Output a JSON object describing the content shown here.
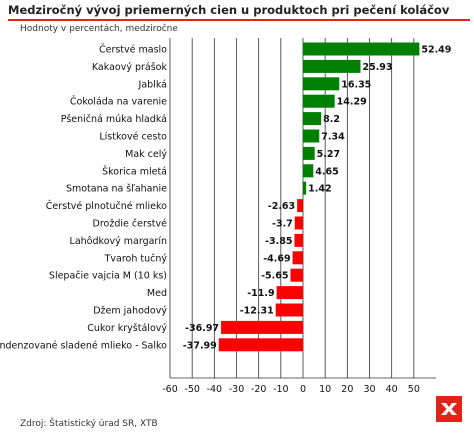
{
  "header": {
    "title": "Medziročný vývoj priemerných cien u produktoch pri pečení koláčov",
    "subtitle": "Hodnoty v percentách, medziročne"
  },
  "footer": {
    "source": "Zdroj: Štatistický úrad SR, XTB"
  },
  "colors": {
    "positive": "#008000",
    "negative": "#ff0000",
    "accent": "#e2231a",
    "grid": "#333333"
  },
  "logo": {
    "icon": "xtb-logo-icon"
  },
  "chart_data": {
    "type": "bar",
    "orientation": "horizontal",
    "categories": [
      "Čerstvé maslo",
      "Kakaový prášok",
      "Jablká",
      "Čokoláda na varenie",
      "Pšeničná múka hladká",
      "Lístkové cesto",
      "Mak celý",
      "Škorica mletá",
      "Smotana na šľahanie",
      "Čerstvé plnotučné mlieko",
      "Droždie čerstvé",
      "Lahôdkový margarín",
      "Tvaroh tučný",
      "Slepačie vajcia M (10 ks)",
      "Med",
      "Džem jahodový",
      "Cukor kryštálový",
      "Kondenzované sladené mlieko - Salko"
    ],
    "values": [
      52.49,
      25.93,
      16.35,
      14.29,
      8.2,
      7.34,
      5.27,
      4.65,
      1.42,
      -2.63,
      -3.7,
      -3.85,
      -4.69,
      -5.65,
      -11.9,
      -12.31,
      -36.97,
      -37.99
    ],
    "data_labels": [
      "52.49",
      "25.93",
      "16.35",
      "14.29",
      "8.2",
      "7.34",
      "5.27",
      "4.65",
      "1.42",
      "-2.63",
      "-3.7",
      "-3.85",
      "-4.69",
      "-5.65",
      "-11.9",
      "-12.31",
      "-36.97",
      "-37.99"
    ],
    "xlim": [
      -60,
      60
    ],
    "xticks": [
      -60,
      -50,
      -40,
      -30,
      -20,
      -10,
      0,
      10,
      20,
      30,
      40,
      50
    ],
    "xlabel": "",
    "ylabel": "",
    "grid": "vertical",
    "legend": "none"
  }
}
